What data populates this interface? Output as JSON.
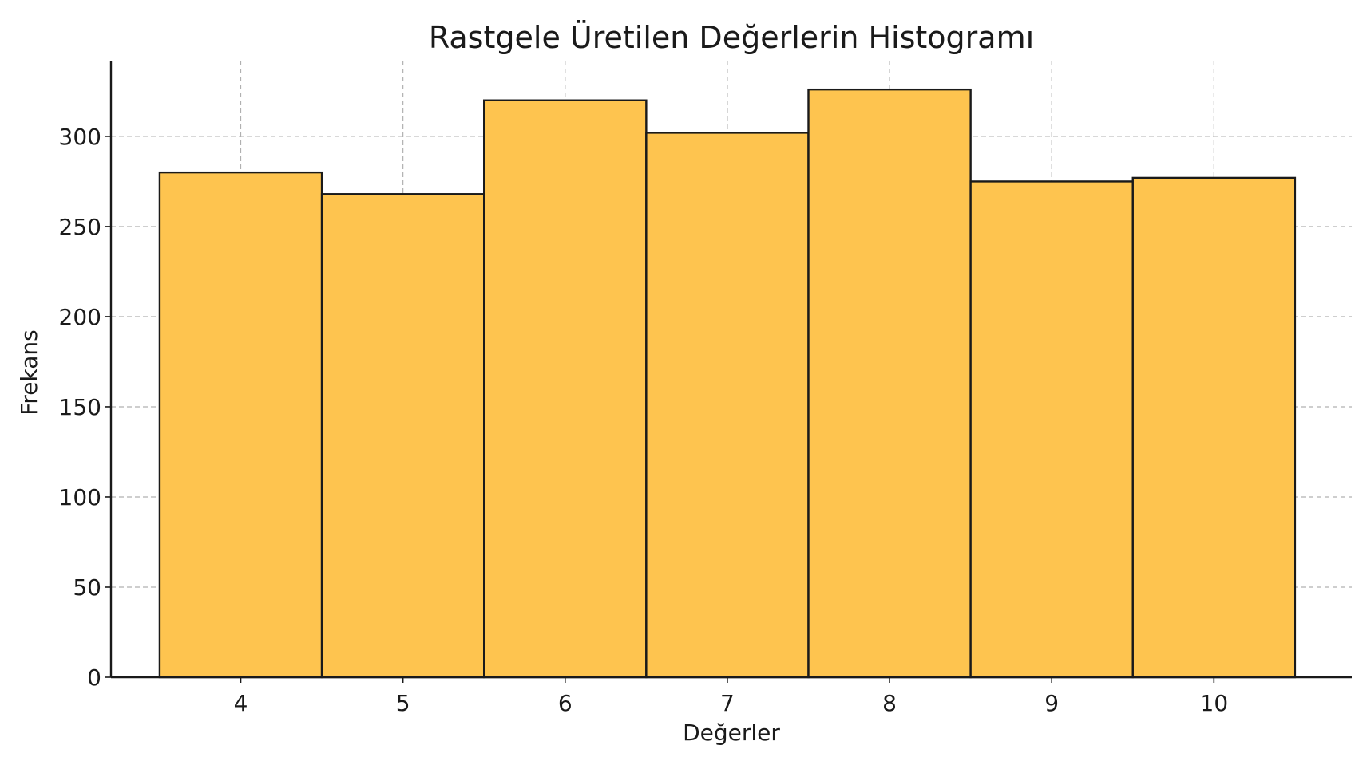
{
  "chart_data": {
    "type": "bar",
    "title": "Rastgele Üretilen Değerlerin Histogramı",
    "xlabel": "Değerler",
    "ylabel": "Frekans",
    "categories": [
      "4",
      "5",
      "6",
      "7",
      "8",
      "9",
      "10"
    ],
    "x": [
      4,
      5,
      6,
      7,
      8,
      9,
      10
    ],
    "values": [
      280,
      268,
      320,
      302,
      326,
      275,
      277
    ],
    "xlim": [
      3.2,
      10.85
    ],
    "ylim": [
      0,
      342
    ],
    "yticks": [
      0,
      50,
      100,
      150,
      200,
      250,
      300
    ],
    "grid": true,
    "legend": "none",
    "bar_color": "#fec44f",
    "edge_color": "#1a1a1a"
  }
}
